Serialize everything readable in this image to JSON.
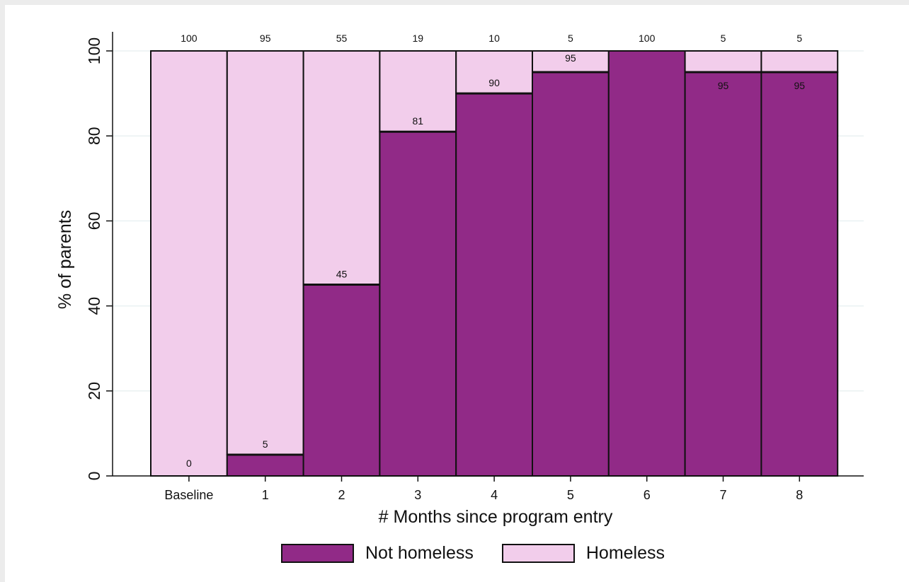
{
  "chart_data": {
    "type": "bar",
    "stacked": true,
    "categories": [
      "Baseline",
      "1",
      "2",
      "3",
      "4",
      "5",
      "6",
      "7",
      "8"
    ],
    "series": [
      {
        "name": "Not homeless",
        "values": [
          0,
          5,
          45,
          81,
          90,
          95,
          100,
          95,
          95
        ],
        "color": "#912a87"
      },
      {
        "name": "Homeless",
        "values": [
          100,
          95,
          55,
          19,
          10,
          5,
          0,
          5,
          5
        ],
        "color": "#f2cdeb"
      }
    ],
    "top_labels": [
      "100",
      "95",
      "55",
      "19",
      "10",
      "5",
      "100",
      "5",
      "5"
    ],
    "boundary_labels": [
      "0",
      "5",
      "45",
      "81",
      "90",
      "95",
      "",
      "95",
      "95"
    ],
    "xlabel": "# Months since program entry",
    "ylabel": "% of parents",
    "ylim": [
      0,
      100
    ],
    "yticks": [
      0,
      20,
      40,
      60,
      80,
      100
    ],
    "grid": true,
    "legend_position": "bottom"
  }
}
